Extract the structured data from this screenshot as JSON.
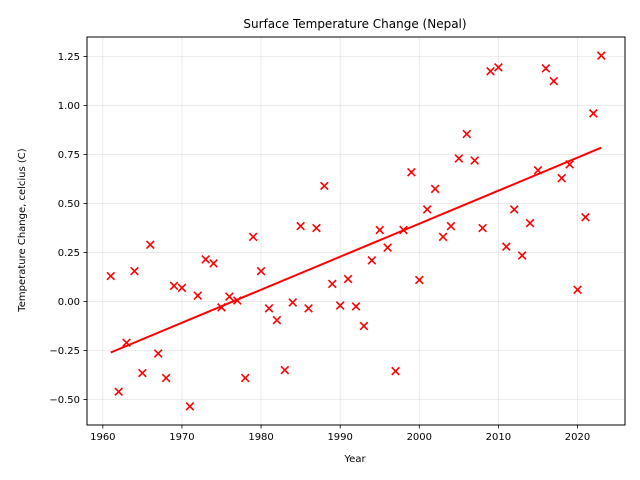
{
  "chart_data": {
    "type": "scatter",
    "title": "Surface Temperature Change (Nepal)",
    "xlabel": "Year",
    "ylabel": "Temperature Change, celcius (C)",
    "xlim": [
      1958,
      2026
    ],
    "ylim": [
      -0.63,
      1.35
    ],
    "xticks": [
      1960,
      1970,
      1980,
      1990,
      2000,
      2010,
      2020
    ],
    "yticks": [
      -0.5,
      -0.25,
      0.0,
      0.25,
      0.5,
      0.75,
      1.0,
      1.25
    ],
    "ytick_labels": [
      "−0.50",
      "−0.25",
      "0.00",
      "0.25",
      "0.50",
      "0.75",
      "1.00",
      "1.25"
    ],
    "grid": true,
    "marker": "x",
    "color": "#ff0000",
    "trend_line": {
      "x": [
        1961,
        2023
      ],
      "y": [
        -0.26,
        0.785
      ],
      "color": "#ff0000"
    },
    "series": [
      {
        "points": [
          [
            1961,
            0.13
          ],
          [
            1962,
            -0.46
          ],
          [
            1963,
            -0.21
          ],
          [
            1964,
            0.155
          ],
          [
            1965,
            -0.365
          ],
          [
            1966,
            0.29
          ],
          [
            1967,
            -0.265
          ],
          [
            1968,
            -0.39
          ],
          [
            1969,
            0.08
          ],
          [
            1970,
            0.07
          ],
          [
            1971,
            -0.535
          ],
          [
            1972,
            0.03
          ],
          [
            1973,
            0.215
          ],
          [
            1974,
            0.195
          ],
          [
            1975,
            -0.03
          ],
          [
            1976,
            0.025
          ],
          [
            1977,
            0.005
          ],
          [
            1978,
            -0.39
          ],
          [
            1979,
            0.33
          ],
          [
            1980,
            0.155
          ],
          [
            1981,
            -0.035
          ],
          [
            1982,
            -0.095
          ],
          [
            1983,
            -0.35
          ],
          [
            1984,
            -0.005
          ],
          [
            1985,
            0.385
          ],
          [
            1986,
            -0.035
          ],
          [
            1987,
            0.375
          ],
          [
            1988,
            0.59
          ],
          [
            1989,
            0.09
          ],
          [
            1990,
            -0.02
          ],
          [
            1991,
            0.115
          ],
          [
            1992,
            -0.025
          ],
          [
            1993,
            -0.125
          ],
          [
            1994,
            0.21
          ],
          [
            1995,
            0.365
          ],
          [
            1996,
            0.275
          ],
          [
            1997,
            -0.355
          ],
          [
            1998,
            0.365
          ],
          [
            1999,
            0.66
          ],
          [
            2000,
            0.11
          ],
          [
            2001,
            0.47
          ],
          [
            2002,
            0.575
          ],
          [
            2003,
            0.33
          ],
          [
            2004,
            0.385
          ],
          [
            2005,
            0.73
          ],
          [
            2006,
            0.855
          ],
          [
            2007,
            0.72
          ],
          [
            2008,
            0.375
          ],
          [
            2009,
            1.175
          ],
          [
            2010,
            1.195
          ],
          [
            2011,
            0.28
          ],
          [
            2012,
            0.47
          ],
          [
            2013,
            0.235
          ],
          [
            2014,
            0.4
          ],
          [
            2015,
            0.67
          ],
          [
            2016,
            1.19
          ],
          [
            2017,
            1.125
          ],
          [
            2018,
            0.63
          ],
          [
            2019,
            0.7
          ],
          [
            2020,
            0.06
          ],
          [
            2021,
            0.43
          ],
          [
            2022,
            0.96
          ],
          [
            2023,
            1.255
          ]
        ]
      }
    ]
  }
}
